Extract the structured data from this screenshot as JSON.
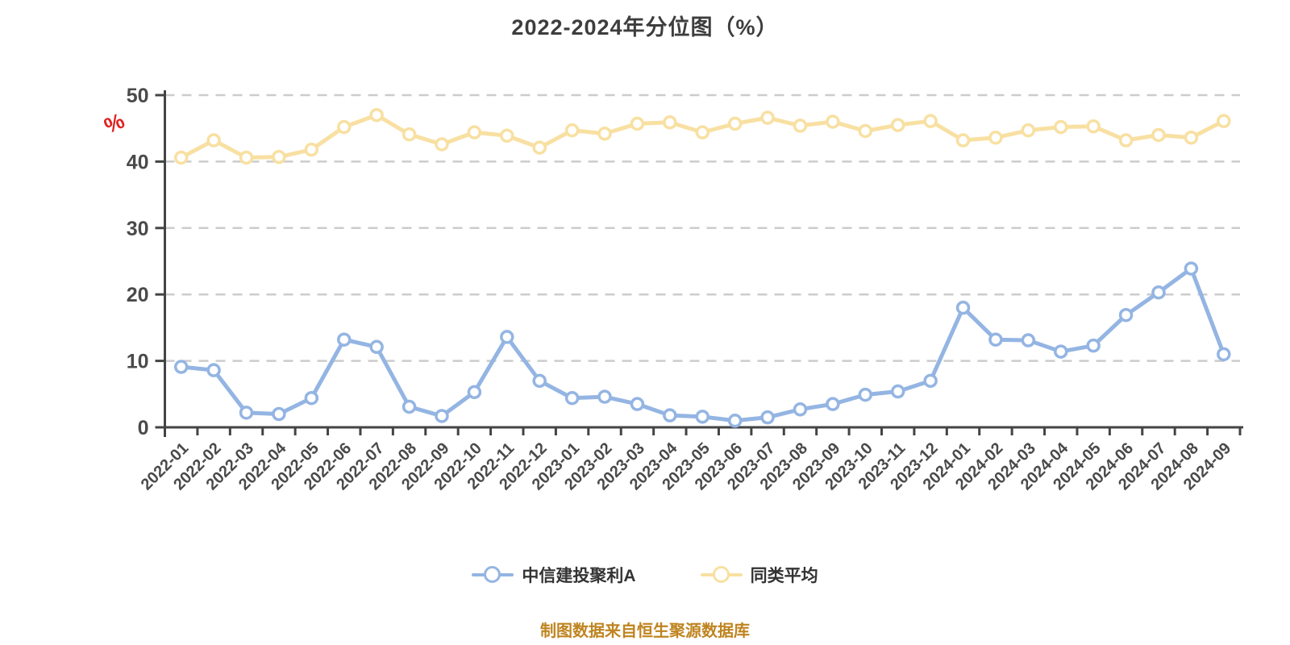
{
  "chart_data": {
    "type": "line",
    "title": "2022-2024年分位图（%）",
    "ylabel": "%",
    "xlabel": "",
    "ylim": [
      0,
      50
    ],
    "y_ticks": [
      0,
      10,
      20,
      30,
      40,
      50
    ],
    "grid": "horizontal-dashed",
    "legend_position": "bottom",
    "x_label_rotation": 45,
    "categories": [
      "2022-01",
      "2022-02",
      "2022-03",
      "2022-04",
      "2022-05",
      "2022-06",
      "2022-07",
      "2022-08",
      "2022-09",
      "2022-10",
      "2022-11",
      "2022-12",
      "2023-01",
      "2023-02",
      "2023-03",
      "2023-04",
      "2023-05",
      "2023-06",
      "2023-07",
      "2023-08",
      "2023-09",
      "2023-10",
      "2023-11",
      "2023-12",
      "2024-01",
      "2024-02",
      "2024-03",
      "2024-04",
      "2024-05",
      "2024-06",
      "2024-07",
      "2024-08",
      "2024-09"
    ],
    "series": [
      {
        "name": "中信建投聚利A",
        "color": "#94b5e3",
        "marker": "circle",
        "values": [
          9.1,
          8.6,
          2.2,
          2.0,
          4.4,
          13.2,
          12.1,
          3.1,
          1.7,
          5.3,
          13.6,
          7.0,
          4.4,
          4.6,
          3.5,
          1.8,
          1.6,
          1.0,
          1.5,
          2.7,
          3.5,
          4.9,
          5.4,
          7.0,
          18.0,
          13.2,
          13.1,
          11.4,
          12.3,
          16.9,
          20.3,
          23.9,
          11.0
        ]
      },
      {
        "name": "同类平均",
        "color": "#f8e0a2",
        "marker": "circle",
        "values": [
          40.6,
          43.2,
          40.6,
          40.7,
          41.8,
          45.2,
          47.0,
          44.1,
          42.6,
          44.4,
          43.9,
          42.1,
          44.7,
          44.2,
          45.7,
          45.9,
          44.4,
          45.7,
          46.6,
          45.4,
          46.0,
          44.6,
          45.5,
          46.1,
          43.2,
          43.6,
          44.7,
          45.2,
          45.3,
          43.2,
          44.0,
          43.6,
          46.1
        ]
      }
    ],
    "caption": "制图数据来自恒生聚源数据库"
  },
  "style": {
    "background": "#ffffff",
    "title_color": "#3d3d3d",
    "axis_color": "#444444",
    "grid_color": "#cccccc",
    "label_color": "#4a4a4a",
    "legend_text_color": "#333333",
    "marker_fill": "#ffffff",
    "caption_color": "#bf8420",
    "unit_color": "#e02121"
  }
}
